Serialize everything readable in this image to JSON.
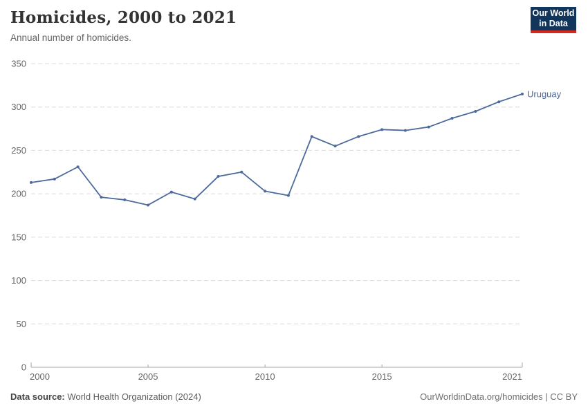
{
  "header": {
    "title": "Homicides, 2000 to 2021",
    "subtitle": "Annual number of homicides.",
    "logo": {
      "line1": "Our World",
      "line2": "in Data"
    }
  },
  "chart_data": {
    "type": "line",
    "title": "Homicides, 2000 to 2021",
    "subtitle": "Annual number of homicides.",
    "xlabel": "",
    "ylabel": "",
    "x_range": [
      2000,
      2021
    ],
    "ylim": [
      0,
      350
    ],
    "yticks": [
      0,
      50,
      100,
      150,
      200,
      250,
      300,
      350
    ],
    "xticks": [
      2000,
      2005,
      2010,
      2015,
      2021
    ],
    "grid": "horizontal-dashed",
    "legend_position": "end-of-line-label",
    "series": [
      {
        "name": "Uruguay",
        "color": "#4C6A9C",
        "x": [
          2000,
          2001,
          2002,
          2003,
          2004,
          2005,
          2006,
          2007,
          2008,
          2009,
          2010,
          2011,
          2012,
          2013,
          2014,
          2015,
          2016,
          2017,
          2018,
          2019,
          2020,
          2021
        ],
        "values": [
          213,
          217,
          231,
          196,
          193,
          187,
          202,
          194,
          220,
          225,
          203,
          198,
          266,
          255,
          266,
          274,
          273,
          277,
          287,
          295,
          306,
          315
        ]
      }
    ],
    "colors": {
      "gridline": "#dcdcdc",
      "axis": "#a5a5a5",
      "tick_label": "#666666"
    }
  },
  "footer": {
    "source_label": "Data source:",
    "source_value": " World Health Organization (2024)",
    "credit": "OurWorldinData.org/homicides | CC BY"
  }
}
